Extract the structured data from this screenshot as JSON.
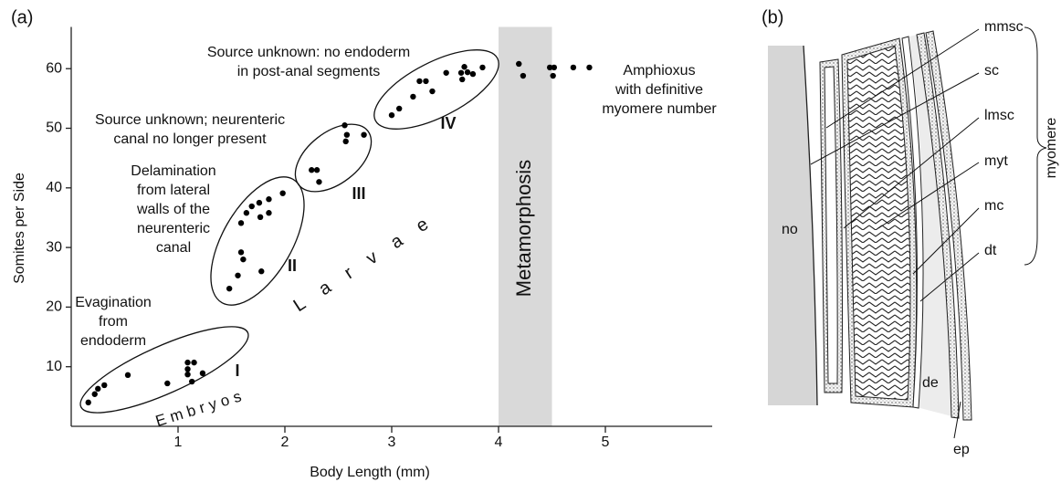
{
  "panel_labels": [
    "(a)",
    "(b)"
  ],
  "chart_data": {
    "type": "scatter",
    "x_label": "Body Length (mm)",
    "y_label": "Somites per Side",
    "color": "#000000",
    "x": [
      0.16,
      0.22,
      0.25,
      0.31,
      0.53,
      0.9,
      1.09,
      1.15,
      1.09,
      1.09,
      1.13,
      1.23,
      1.48,
      1.56,
      1.59,
      1.61,
      1.78,
      1.59,
      1.64,
      1.69,
      1.76,
      1.85,
      1.77,
      1.85,
      1.98,
      2.25,
      2.3,
      2.32,
      2.57,
      2.56,
      2.58,
      2.74,
      3.0,
      3.07,
      3.2,
      3.26,
      3.32,
      3.38,
      3.51,
      3.65,
      3.68,
      3.66,
      3.71,
      3.76,
      3.85,
      4.19,
      4.23,
      4.48,
      4.52,
      4.51,
      4.7,
      4.85
    ],
    "values": [
      4.0,
      5.4,
      6.3,
      6.9,
      8.6,
      7.2,
      10.7,
      10.7,
      9.6,
      8.7,
      7.5,
      8.9,
      23.1,
      25.3,
      29.2,
      28.0,
      26.0,
      34.1,
      35.8,
      36.9,
      37.5,
      38.1,
      35.1,
      35.8,
      39.1,
      43.0,
      43.0,
      41.0,
      47.8,
      50.5,
      48.9,
      48.9,
      52.2,
      53.3,
      55.3,
      57.9,
      57.9,
      56.2,
      59.3,
      59.3,
      60.3,
      58.2,
      59.4,
      59.1,
      60.2,
      60.8,
      58.8,
      60.2,
      60.2,
      58.8,
      60.2,
      60.2
    ],
    "xlim": [
      0,
      6
    ],
    "ylim": [
      0,
      67
    ],
    "xticks": [
      1,
      2,
      3,
      4,
      5
    ],
    "yticks": [
      10,
      20,
      30,
      40,
      50,
      60
    ],
    "shaded_region": {
      "x": [
        4,
        4.5
      ],
      "label": "Metamorphosis",
      "color": "#d9d9d9"
    },
    "group_labels": [
      "I",
      "II",
      "III",
      "IV"
    ],
    "phase_labels": [
      "Embryos",
      "Larvae"
    ],
    "annotations": [
      [
        "Evagination",
        "from",
        "endoderm"
      ],
      [
        "Delamination",
        "from lateral",
        "walls of the",
        "neurenteric",
        "canal"
      ],
      [
        "Source unknown; neurenteric",
        "canal no longer present"
      ],
      [
        "Source unknown: no endoderm",
        "in post-anal segments"
      ],
      [
        "Amphioxus",
        "with definitive",
        "myomere number"
      ]
    ]
  },
  "diagram": {
    "labels": {
      "no": "no",
      "mmsc": "mmsc",
      "sc": "sc",
      "lmsc": "lmsc",
      "myt": "myt",
      "mc": "mc",
      "dt": "dt",
      "de": "de",
      "ep": "ep"
    },
    "bracket_label": "myomere"
  }
}
